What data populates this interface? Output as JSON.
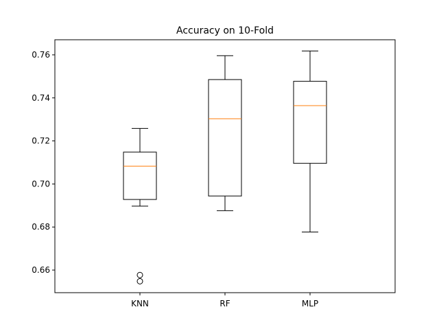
{
  "chart_data": {
    "type": "boxplot",
    "title": "Accuracy on 10-Fold",
    "xlabel": "",
    "ylabel": "",
    "categories": [
      "KNN",
      "RF",
      "MLP"
    ],
    "boxes": [
      {
        "category": "KNN",
        "whisker_low": 0.6897,
        "q1": 0.6928,
        "median": 0.7083,
        "q3": 0.7148,
        "whisker_high": 0.7258,
        "outliers": [
          0.6577,
          0.6548
        ]
      },
      {
        "category": "RF",
        "whisker_low": 0.6876,
        "q1": 0.6944,
        "median": 0.7303,
        "q3": 0.7485,
        "whisker_high": 0.7596,
        "outliers": []
      },
      {
        "category": "MLP",
        "whisker_low": 0.6777,
        "q1": 0.7096,
        "median": 0.7364,
        "q3": 0.7477,
        "whisker_high": 0.7618,
        "outliers": []
      }
    ],
    "ylim": [
      0.6495,
      0.767
    ],
    "yticks": [
      0.66,
      0.68,
      0.7,
      0.72,
      0.74,
      0.76
    ],
    "ytick_labels": [
      "0.66",
      "0.68",
      "0.70",
      "0.72",
      "0.74",
      "0.76"
    ],
    "grid": false,
    "colors": {
      "box": "#000000",
      "median": "#ff7f0e",
      "outlier": "#000000"
    }
  }
}
